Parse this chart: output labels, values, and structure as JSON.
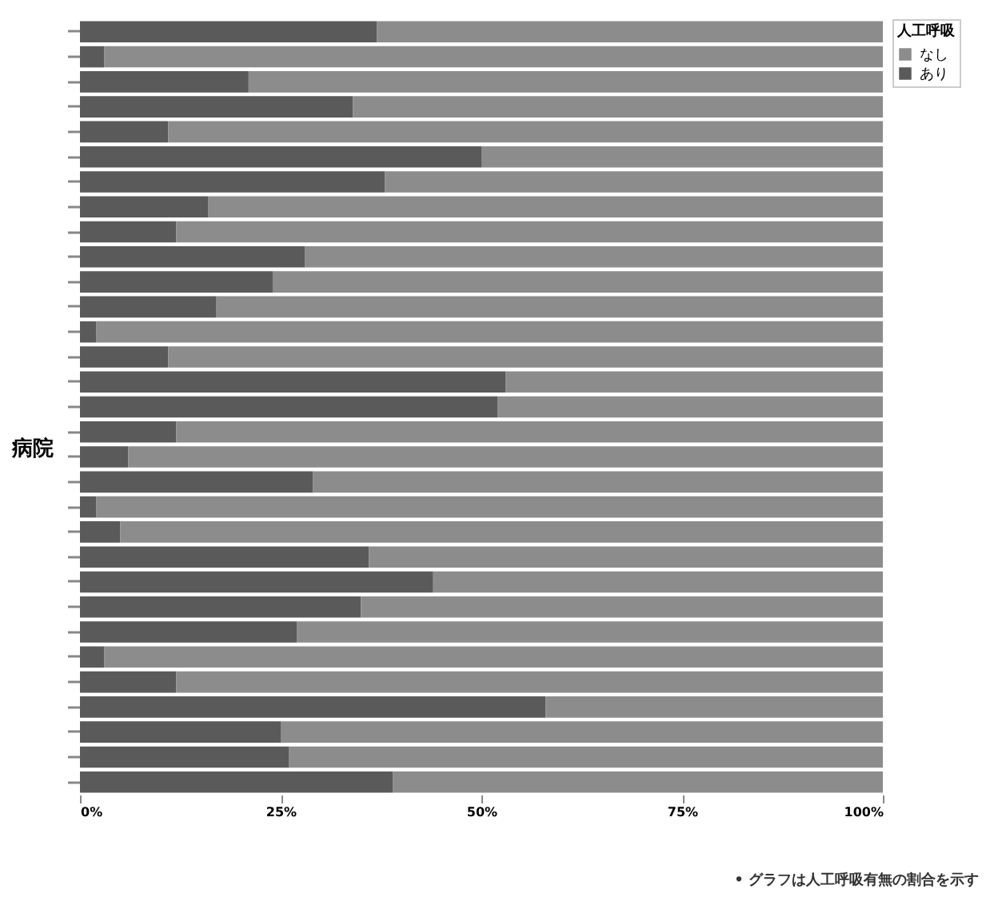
{
  "chart_data": {
    "type": "bar",
    "orientation": "horizontal",
    "stacked": true,
    "ylabel": "病院",
    "legend_title": "人工呼吸",
    "legend": "top right",
    "tick_labels": "x",
    "grid": false,
    "categories": [
      null,
      null,
      null,
      null,
      null,
      null,
      null,
      null,
      null,
      null,
      null,
      null,
      null,
      null,
      null,
      null,
      null,
      null,
      null,
      null,
      null,
      null,
      null,
      null,
      null,
      null,
      null,
      null,
      null,
      null,
      null
    ],
    "xlim": [
      0,
      100
    ],
    "xticks": [
      {
        "value": 0,
        "label": "0%"
      },
      {
        "value": 25,
        "label": "25%"
      },
      {
        "value": 50,
        "label": "50%"
      },
      {
        "value": 75,
        "label": "75%"
      },
      {
        "value": 100,
        "label": "100%"
      }
    ],
    "series": [
      {
        "name": "あり",
        "color": "#5a5a5a",
        "values": [
          37,
          3,
          21,
          34,
          11,
          50,
          38,
          16,
          12,
          28,
          24,
          17,
          2,
          11,
          53,
          52,
          12,
          6,
          29,
          2,
          5,
          36,
          44,
          35,
          27,
          3,
          12,
          58,
          25,
          26,
          39
        ]
      },
      {
        "name": "なし",
        "color": "#8c8c8c",
        "values": [
          63,
          97,
          79,
          66,
          89,
          50,
          62,
          84,
          88,
          72,
          76,
          83,
          98,
          89,
          47,
          48,
          88,
          94,
          71,
          98,
          95,
          64,
          56,
          65,
          73,
          97,
          88,
          42,
          75,
          74,
          61
        ]
      }
    ],
    "annotations": [
      "• グラフは人工呼吸有無の割合を示す"
    ]
  }
}
